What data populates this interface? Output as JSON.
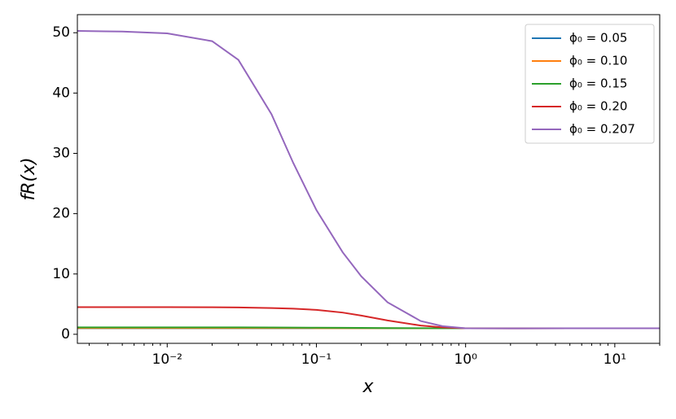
{
  "chart_data": {
    "type": "line",
    "x_label": "x",
    "y_label": "fR(x)",
    "x": [
      0.0025,
      0.005,
      0.01,
      0.02,
      0.03,
      0.05,
      0.07,
      0.1,
      0.15,
      0.2,
      0.3,
      0.5,
      0.7,
      1,
      2,
      5,
      10,
      20
    ],
    "series": [
      {
        "name": "ϕ₀ = 0.05",
        "color": "#1f77b4",
        "values": [
          1.0,
          1.0,
          1.0,
          1.0,
          1.0,
          1.0,
          1.0,
          1.0,
          1.0,
          1.0,
          1.0,
          1.0,
          1.0,
          1.0,
          1.0,
          1.0,
          1.0,
          1.0
        ]
      },
      {
        "name": "ϕ₀ = 0.10",
        "color": "#ff7f0e",
        "values": [
          1.03,
          1.03,
          1.03,
          1.03,
          1.03,
          1.03,
          1.03,
          1.02,
          1.02,
          1.02,
          1.01,
          1.0,
          1.0,
          1.0,
          1.0,
          1.0,
          1.0,
          1.0
        ]
      },
      {
        "name": "ϕ₀ = 0.15",
        "color": "#2ca02c",
        "values": [
          1.15,
          1.15,
          1.15,
          1.15,
          1.14,
          1.13,
          1.12,
          1.1,
          1.08,
          1.06,
          1.03,
          1.01,
          1.0,
          1.0,
          0.99,
          1.0,
          1.0,
          1.0
        ]
      },
      {
        "name": "ϕ₀ = 0.20",
        "color": "#d62728",
        "values": [
          4.5,
          4.5,
          4.5,
          4.48,
          4.45,
          4.35,
          4.25,
          4.05,
          3.6,
          3.1,
          2.3,
          1.45,
          1.15,
          1.0,
          0.98,
          0.99,
          1.0,
          1.0
        ]
      },
      {
        "name": "ϕ₀ = 0.207",
        "color": "#9467bd",
        "values": [
          50.3,
          50.2,
          49.9,
          48.6,
          45.5,
          36.5,
          28.4,
          20.6,
          13.6,
          9.6,
          5.3,
          2.2,
          1.35,
          1.0,
          0.98,
          0.99,
          1.0,
          1.0
        ]
      }
    ],
    "xscale": "log",
    "xlim": [
      0.0025,
      20
    ],
    "xticks": [
      {
        "value": 0.01,
        "label": "10⁻²"
      },
      {
        "value": 0.1,
        "label": "10⁻¹"
      },
      {
        "value": 1,
        "label": "10⁰"
      },
      {
        "value": 10,
        "label": "10¹"
      }
    ],
    "minor_xticks": [
      0.003,
      0.004,
      0.005,
      0.006,
      0.007,
      0.008,
      0.009,
      0.02,
      0.03,
      0.04,
      0.05,
      0.06,
      0.07,
      0.08,
      0.09,
      0.2,
      0.3,
      0.4,
      0.5,
      0.6,
      0.7,
      0.8,
      0.9,
      2,
      3,
      4,
      5,
      6,
      7,
      8,
      9,
      20
    ],
    "ylim": [
      -1.5,
      53
    ],
    "yticks": [
      0,
      10,
      20,
      30,
      40,
      50
    ],
    "grid": false,
    "legend": "upper right"
  }
}
